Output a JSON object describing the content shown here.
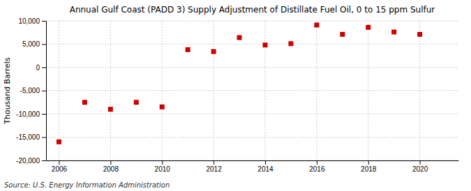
{
  "chart_data": {
    "type": "scatter",
    "title": "Annual Gulf Coast (PADD 3) Supply Adjustment of Distillate Fuel Oil, 0 to 15 ppm Sulfur",
    "ylabel": "Thousand Barrels",
    "annotations": [
      "Source: U.S. Energy Information Administration"
    ],
    "x": [
      2006,
      2007,
      2008,
      2009,
      2010,
      2011,
      2012,
      2013,
      2014,
      2015,
      2016,
      2017,
      2018,
      2019,
      2020
    ],
    "values": [
      -16000,
      -7500,
      -9000,
      -7500,
      -8500,
      3800,
      3400,
      6400,
      4800,
      5100,
      9100,
      7100,
      8600,
      7600,
      7100
    ],
    "color": "#cc0000",
    "marker": "square",
    "xlim": [
      2005.5,
      2021.5
    ],
    "xticks": [
      2006,
      2008,
      2010,
      2012,
      2014,
      2016,
      2018,
      2020
    ],
    "ylim": [
      -20000,
      10000
    ],
    "yticks": [
      {
        "value": -20000,
        "label": "-20,000"
      },
      {
        "value": -15000,
        "label": "-15,000"
      },
      {
        "value": -10000,
        "label": "-10,000"
      },
      {
        "value": -5000,
        "label": "-5,000"
      },
      0,
      {
        "value": 5000,
        "label": "5,000"
      },
      {
        "value": 10000,
        "label": "10,000"
      }
    ],
    "grid": true
  }
}
